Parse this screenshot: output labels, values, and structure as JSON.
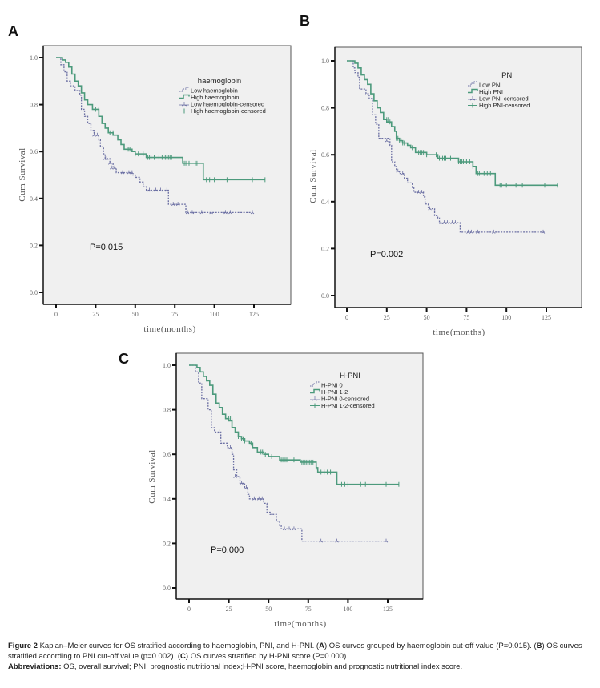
{
  "chart_data": [
    {
      "panel": "A",
      "type": "line",
      "subtype": "kaplan-meier",
      "title": "",
      "xlabel": "time(months)",
      "ylabel": "Cum Survival",
      "xlim": [
        -8,
        146
      ],
      "ylim": [
        -0.05,
        1.05
      ],
      "xticks": [
        0,
        25,
        50,
        75,
        100,
        125
      ],
      "xtick_labels": [
        "0",
        "25",
        "50",
        "75",
        "100",
        "125"
      ],
      "yticks": [
        0.0,
        0.2,
        0.4,
        0.6,
        0.8,
        1.0
      ],
      "ytick_labels": [
        "0.0",
        "0.2",
        "0.4",
        "0.6",
        "0.8",
        "1.0"
      ],
      "grid": false,
      "legend_title": "haemoglobin",
      "legend_position": "top-right",
      "annotation": "P=0.015",
      "series": [
        {
          "name": "Low haemoglobin",
          "color": "#6b6fa3",
          "style": "dashed",
          "x": [
            0,
            3,
            5,
            7,
            9,
            12,
            15,
            16,
            18,
            20,
            22,
            24,
            27,
            28,
            30,
            31,
            34,
            36,
            38,
            45,
            48,
            50,
            53,
            55,
            57,
            70,
            71,
            81,
            82,
            124
          ],
          "y": [
            1.0,
            0.97,
            0.94,
            0.9,
            0.88,
            0.86,
            0.84,
            0.78,
            0.75,
            0.72,
            0.69,
            0.67,
            0.65,
            0.62,
            0.59,
            0.57,
            0.55,
            0.53,
            0.51,
            0.51,
            0.5,
            0.49,
            0.47,
            0.45,
            0.435,
            0.435,
            0.375,
            0.375,
            0.34,
            0.34
          ]
        },
        {
          "name": "High haemoglobin",
          "color": "#4c9a7c",
          "style": "solid",
          "x": [
            0,
            4,
            6,
            8,
            10,
            12,
            14,
            16,
            18,
            20,
            23,
            27,
            29,
            31,
            33,
            36,
            39,
            41,
            43,
            48,
            50,
            57,
            80,
            93,
            132
          ],
          "y": [
            1.0,
            0.99,
            0.98,
            0.96,
            0.93,
            0.9,
            0.88,
            0.85,
            0.82,
            0.8,
            0.78,
            0.75,
            0.72,
            0.7,
            0.68,
            0.67,
            0.65,
            0.63,
            0.61,
            0.6,
            0.59,
            0.575,
            0.55,
            0.48,
            0.48
          ]
        }
      ],
      "censored": [
        {
          "series": "Low haemoglobin",
          "x": [
            24,
            26,
            31,
            32,
            34,
            35,
            37,
            42,
            46,
            48,
            59,
            60,
            63,
            66,
            70,
            74,
            77,
            83,
            86,
            92,
            98,
            107,
            110,
            124
          ],
          "y": [
            0.67,
            0.67,
            0.57,
            0.57,
            0.55,
            0.53,
            0.53,
            0.51,
            0.51,
            0.51,
            0.435,
            0.435,
            0.435,
            0.435,
            0.435,
            0.375,
            0.375,
            0.34,
            0.34,
            0.34,
            0.34,
            0.34,
            0.34,
            0.34
          ]
        },
        {
          "series": "High haemoglobin",
          "x": [
            25,
            27,
            34,
            36,
            45,
            46,
            47,
            50,
            52,
            55,
            58,
            59,
            60,
            62,
            65,
            67,
            69,
            70,
            71,
            72,
            73,
            81,
            82,
            84,
            88,
            89,
            95,
            97,
            100,
            108,
            124,
            132
          ],
          "y": [
            0.78,
            0.78,
            0.68,
            0.68,
            0.61,
            0.61,
            0.61,
            0.59,
            0.59,
            0.59,
            0.575,
            0.575,
            0.575,
            0.575,
            0.575,
            0.575,
            0.575,
            0.575,
            0.575,
            0.575,
            0.575,
            0.55,
            0.55,
            0.55,
            0.55,
            0.55,
            0.48,
            0.48,
            0.48,
            0.48,
            0.48,
            0.48
          ]
        }
      ]
    },
    {
      "panel": "B",
      "type": "line",
      "subtype": "kaplan-meier",
      "title": "",
      "xlabel": "time(months)",
      "ylabel": "Cum Survival",
      "xlim": [
        -8,
        146
      ],
      "ylim": [
        -0.05,
        1.05
      ],
      "xticks": [
        0,
        25,
        50,
        75,
        100,
        125
      ],
      "xtick_labels": [
        "0",
        "25",
        "50",
        "75",
        "100",
        "125"
      ],
      "yticks": [
        0.0,
        0.2,
        0.4,
        0.6,
        0.8,
        1.0
      ],
      "ytick_labels": [
        "0.0",
        "0.2",
        "0.4",
        "0.6",
        "0.8",
        "1.0"
      ],
      "grid": false,
      "legend_title": "PNI",
      "legend_position": "top-right",
      "annotation": "P=0.002",
      "series": [
        {
          "name": "Low PNI",
          "color": "#6b6fa3",
          "style": "dashed",
          "x": [
            0,
            4,
            5,
            7,
            8,
            12,
            14,
            16,
            18,
            20,
            27,
            28,
            30,
            31,
            33,
            36,
            38,
            41,
            42,
            43,
            48,
            49,
            51,
            55,
            57,
            58,
            71,
            124
          ],
          "y": [
            1.0,
            0.97,
            0.95,
            0.93,
            0.88,
            0.86,
            0.84,
            0.77,
            0.73,
            0.67,
            0.64,
            0.57,
            0.55,
            0.53,
            0.52,
            0.5,
            0.48,
            0.46,
            0.44,
            0.44,
            0.42,
            0.39,
            0.37,
            0.34,
            0.33,
            0.31,
            0.27,
            0.27
          ]
        },
        {
          "name": "High PNI",
          "color": "#4c9a7c",
          "style": "solid",
          "x": [
            0,
            5,
            7,
            9,
            11,
            13,
            15,
            17,
            19,
            21,
            23,
            25,
            28,
            30,
            31,
            33,
            35,
            38,
            40,
            43,
            50,
            57,
            70,
            79,
            81,
            93,
            132
          ],
          "y": [
            1.0,
            0.99,
            0.97,
            0.94,
            0.92,
            0.9,
            0.86,
            0.83,
            0.8,
            0.78,
            0.75,
            0.74,
            0.72,
            0.7,
            0.67,
            0.66,
            0.65,
            0.64,
            0.63,
            0.61,
            0.6,
            0.585,
            0.57,
            0.55,
            0.52,
            0.47,
            0.47
          ]
        }
      ],
      "censored": [
        {
          "series": "Low PNI",
          "x": [
            25,
            32,
            35,
            45,
            47,
            52,
            59,
            61,
            63,
            66,
            68,
            76,
            78,
            82,
            92,
            123
          ],
          "y": [
            0.66,
            0.53,
            0.52,
            0.44,
            0.44,
            0.37,
            0.31,
            0.31,
            0.31,
            0.31,
            0.31,
            0.27,
            0.27,
            0.27,
            0.27,
            0.27
          ]
        },
        {
          "series": "High PNI",
          "x": [
            25,
            26,
            27,
            31,
            32,
            33,
            34,
            35,
            36,
            41,
            45,
            46,
            47,
            48,
            50,
            56,
            58,
            59,
            60,
            61,
            62,
            65,
            70,
            71,
            72,
            73,
            75,
            77,
            79,
            82,
            83,
            86,
            88,
            90,
            96,
            97,
            100,
            106,
            110,
            124,
            132
          ],
          "y": [
            0.75,
            0.75,
            0.74,
            0.67,
            0.67,
            0.66,
            0.66,
            0.65,
            0.65,
            0.63,
            0.61,
            0.61,
            0.61,
            0.61,
            0.6,
            0.6,
            0.585,
            0.585,
            0.585,
            0.585,
            0.585,
            0.585,
            0.57,
            0.57,
            0.57,
            0.57,
            0.57,
            0.57,
            0.55,
            0.52,
            0.52,
            0.52,
            0.52,
            0.52,
            0.47,
            0.47,
            0.47,
            0.47,
            0.47,
            0.47,
            0.47
          ]
        }
      ]
    },
    {
      "panel": "C",
      "type": "line",
      "subtype": "kaplan-meier",
      "title": "",
      "xlabel": "time(months)",
      "ylabel": "Cum Survival",
      "xlim": [
        -8,
        146
      ],
      "ylim": [
        -0.05,
        1.05
      ],
      "xticks": [
        0,
        25,
        50,
        75,
        100,
        125
      ],
      "xtick_labels": [
        "0",
        "25",
        "50",
        "75",
        "100",
        "125"
      ],
      "yticks": [
        0.0,
        0.2,
        0.4,
        0.6,
        0.8,
        1.0
      ],
      "ytick_labels": [
        "0.0",
        "0.2",
        "0.4",
        "0.6",
        "0.8",
        "1.0"
      ],
      "grid": false,
      "legend_title": "H-PNI",
      "legend_position": "top-right",
      "annotation": "P=0.000",
      "series": [
        {
          "name": "H-PNI 0",
          "color": "#6b6fa3",
          "style": "dashed",
          "x": [
            0,
            4,
            6,
            8,
            12,
            14,
            16,
            20,
            24,
            27,
            28,
            30,
            32,
            35,
            37,
            38,
            47,
            49,
            51,
            55,
            57,
            58,
            71,
            124
          ],
          "y": [
            1.0,
            0.97,
            0.92,
            0.85,
            0.8,
            0.72,
            0.7,
            0.65,
            0.63,
            0.6,
            0.53,
            0.5,
            0.47,
            0.45,
            0.42,
            0.4,
            0.38,
            0.34,
            0.33,
            0.3,
            0.28,
            0.265,
            0.21,
            0.21
          ]
        },
        {
          "name": "H-PNI 1-2",
          "color": "#4c9a7c",
          "style": "solid",
          "x": [
            0,
            5,
            7,
            9,
            11,
            13,
            15,
            17,
            19,
            21,
            23,
            25,
            27,
            29,
            31,
            33,
            35,
            38,
            40,
            43,
            47,
            50,
            57,
            70,
            80,
            81,
            93,
            132
          ],
          "y": [
            1.0,
            0.99,
            0.97,
            0.95,
            0.93,
            0.91,
            0.87,
            0.83,
            0.81,
            0.78,
            0.76,
            0.75,
            0.72,
            0.7,
            0.68,
            0.67,
            0.66,
            0.65,
            0.63,
            0.61,
            0.6,
            0.59,
            0.575,
            0.565,
            0.54,
            0.52,
            0.465,
            0.465
          ]
        }
      ],
      "censored": [
        {
          "series": "H-PNI 0",
          "x": [
            19,
            26,
            29,
            33,
            36,
            41,
            44,
            46,
            60,
            63,
            66,
            83,
            93,
            124
          ],
          "y": [
            0.7,
            0.63,
            0.5,
            0.47,
            0.45,
            0.4,
            0.4,
            0.4,
            0.265,
            0.265,
            0.265,
            0.21,
            0.21,
            0.21
          ]
        },
        {
          "series": "H-PNI 1-2",
          "x": [
            25,
            26,
            27,
            31,
            32,
            33,
            34,
            35,
            39,
            45,
            46,
            47,
            48,
            52,
            58,
            59,
            60,
            61,
            62,
            66,
            71,
            72,
            73,
            74,
            75,
            76,
            77,
            78,
            80,
            83,
            85,
            87,
            89,
            96,
            98,
            100,
            108,
            111,
            124,
            132
          ],
          "y": [
            0.76,
            0.76,
            0.75,
            0.68,
            0.68,
            0.67,
            0.67,
            0.66,
            0.65,
            0.61,
            0.61,
            0.61,
            0.6,
            0.59,
            0.575,
            0.575,
            0.575,
            0.575,
            0.575,
            0.575,
            0.565,
            0.565,
            0.565,
            0.565,
            0.565,
            0.565,
            0.565,
            0.565,
            0.54,
            0.52,
            0.52,
            0.52,
            0.52,
            0.465,
            0.465,
            0.465,
            0.465,
            0.465,
            0.465,
            0.465
          ]
        }
      ]
    }
  ],
  "panels": {
    "A": {
      "letter": "A",
      "legend_items": [
        "Low haemoglobin",
        "High haemoglobin",
        "Low haemoglobin-censored",
        "High haemoglobin-censored"
      ]
    },
    "B": {
      "letter": "B",
      "legend_items": [
        "Low PNI",
        "High PNI",
        "Low PNI-censored",
        "High PNI-censored"
      ]
    },
    "C": {
      "letter": "C",
      "legend_items": [
        "H-PNI 0",
        "H-PNI 1-2",
        "H-PNI 0-censored",
        "H-PNI 1-2-censored"
      ]
    }
  },
  "colors": {
    "plot_background": "#f0f0f0",
    "low_group": "#6b6fa3",
    "high_group": "#4c9a7c",
    "axis": "#111111"
  },
  "caption": {
    "figure_label": "Figure 2",
    "text_1": " Kaplan–Meier curves for OS stratified according to haemoglobin, PNI, and H-PNI. (",
    "ref_a": "A",
    "text_2": ") OS curves grouped by haemoglobin cut-off value (P=0.015). (",
    "ref_b": "B",
    "text_3": ") OS curves stratified according to PNI cut-off value (p=0.002). (",
    "ref_c": "C",
    "text_4": ") OS curves stratified by H-PNI score (P=0.000).",
    "abbrev_label": "Abbreviations:",
    "abbrev_text": " OS, overall survival; PNI, prognostic nutritional index;H-PNI score, haemoglobin and prognostic nutritional index score."
  }
}
